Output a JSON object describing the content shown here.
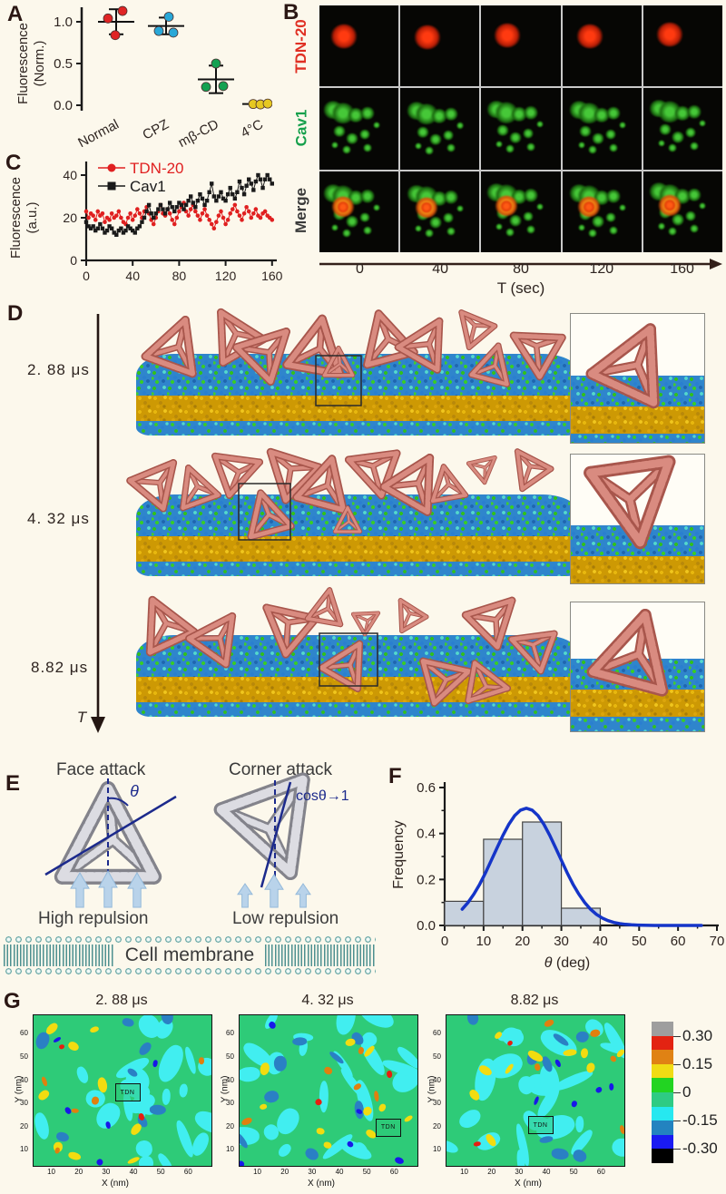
{
  "figure": {
    "background": "#fcf8ec"
  },
  "panelA": {
    "label": "A",
    "ylabel_line1": "Fluorescence",
    "ylabel_line2": "(Norm.)",
    "yticks": [
      "1.0",
      "0.5",
      "0.0"
    ],
    "categories": [
      {
        "name": "Normal",
        "color": "#e02424",
        "points": [
          1.04,
          1.13,
          0.84
        ],
        "mean": 1.0,
        "err": 0.15
      },
      {
        "name": "CPZ",
        "color": "#29a8d8",
        "points": [
          1.06,
          0.89,
          0.87
        ],
        "mean": 0.95,
        "err": 0.1
      },
      {
        "name": "mβ-CD",
        "color": "#13a151",
        "points": [
          0.5,
          0.22,
          0.23
        ],
        "mean": 0.31,
        "err": 0.165
      },
      {
        "name": "4°C",
        "color": "#e6c822",
        "points": [
          0.015,
          0.01,
          0.02
        ],
        "mean": 0.015,
        "err": 0.02
      }
    ]
  },
  "panelB": {
    "label": "B",
    "rows": [
      {
        "label": "TDN-20",
        "color": "#e03024"
      },
      {
        "label": "Cav1",
        "color": "#16a04c"
      },
      {
        "label": "Merge",
        "color": "#3a3a3a"
      }
    ],
    "times": [
      "0",
      "40",
      "80",
      "120",
      "160"
    ],
    "xlabel": "T (sec)"
  },
  "panelC": {
    "label": "C",
    "ylabel_line1": "Fluorescence",
    "ylabel_line2": "(a.u.)",
    "yticks": [
      0,
      20,
      40
    ],
    "xticks": [
      0,
      40,
      80,
      120,
      160
    ],
    "x_start": 0,
    "x_step": 2,
    "series": [
      {
        "name": "TDN-20",
        "color": "#e02020",
        "marker": "circle",
        "y": [
          23,
          20,
          22,
          21,
          19,
          23,
          21,
          22,
          18,
          20,
          19,
          22,
          20,
          21,
          23,
          20,
          18,
          17,
          20,
          22,
          19,
          21,
          24,
          22,
          20,
          23,
          25,
          22,
          19,
          17,
          20,
          23,
          26,
          22,
          21,
          24,
          22,
          19,
          17,
          20,
          23,
          25,
          27,
          23,
          21,
          24,
          26,
          23,
          21,
          19,
          22,
          24,
          21,
          19,
          17,
          15,
          18,
          21,
          23,
          20,
          17,
          19,
          22,
          24,
          26,
          23,
          21,
          19,
          22,
          25,
          23,
          20,
          22,
          24,
          21,
          20,
          22,
          23,
          21,
          20,
          19
        ]
      },
      {
        "name": "Cav1",
        "color": "#1a1a1a",
        "marker": "square",
        "y": [
          18,
          16,
          15,
          16,
          14,
          15,
          17,
          15,
          13,
          14,
          16,
          15,
          13,
          12,
          14,
          15,
          13,
          14,
          16,
          15,
          14,
          13,
          15,
          16,
          18,
          20,
          23,
          26,
          22,
          20,
          22,
          24,
          26,
          24,
          22,
          24,
          27,
          25,
          23,
          25,
          27,
          26,
          24,
          26,
          28,
          30,
          27,
          25,
          28,
          31,
          29,
          26,
          28,
          32,
          36,
          30,
          28,
          30,
          32,
          29,
          28,
          31,
          34,
          31,
          29,
          32,
          37,
          34,
          31,
          35,
          38,
          36,
          33,
          37,
          40,
          38,
          34,
          38,
          40,
          38,
          36
        ]
      }
    ]
  },
  "panelD": {
    "label": "D",
    "times": [
      "2. 88 μs",
      "4. 32 μs",
      "8.82 μs"
    ],
    "t_axis_label": "T"
  },
  "panelE": {
    "label": "E",
    "face_title": "Face attack",
    "corner_title": "Corner attack",
    "theta": "θ",
    "cos_label": "cosθ→1",
    "high_label": "High repulsion",
    "low_label": "Low repulsion",
    "membrane_label": "Cell membrane"
  },
  "panelF": {
    "label": "F",
    "ylabel": "Frequency",
    "xlabel_theta": "θ",
    "xlabel_rest": " (deg)",
    "yticks": [
      "0.0",
      "0.2",
      "0.4",
      "0.6"
    ],
    "xticks": [
      0,
      10,
      20,
      30,
      40,
      50,
      60,
      70
    ],
    "bins": {
      "start": 0,
      "width": 10,
      "values": [
        0.105,
        0.375,
        0.45,
        0.075,
        0,
        0,
        0
      ]
    },
    "curve": {
      "peak_x": 21,
      "peak_y": 0.51,
      "sigma": 8.3
    },
    "bar_color": "#c8d2de",
    "curve_color": "#1535c8"
  },
  "panelG": {
    "label": "G",
    "plots": [
      {
        "title": "2. 88 μs",
        "tdn_x": 37,
        "tdn_y": 35,
        "seed": 11
      },
      {
        "title": "4. 32 μs",
        "tdn_x": 57,
        "tdn_y": 20,
        "seed": 47
      },
      {
        "title": "8.82 μs",
        "tdn_x": 37,
        "tdn_y": 21,
        "seed": 83
      }
    ],
    "tdn_label": "TDN",
    "xlabel": "X (nm)",
    "ylabel": "Y (nm)",
    "ticks": [
      10,
      20,
      30,
      40,
      50,
      60
    ],
    "axis_min": 3,
    "axis_max": 68,
    "colorbar": {
      "labels": [
        "0.30",
        "0.15",
        "0",
        "-0.15",
        "-0.30"
      ],
      "colors": [
        "#9e9e9e",
        "#e32312",
        "#e08214",
        "#f0dc14",
        "#22d422",
        "#2ecb84",
        "#26e8f0",
        "#2383c0",
        "#1a1af2",
        "#000000"
      ]
    }
  },
  "chart_data": [
    {
      "type": "scatter",
      "panel": "A",
      "title": "",
      "categories": [
        "Normal",
        "CPZ",
        "mβ-CD",
        "4°C"
      ],
      "series": [
        {
          "name": "replicate points",
          "values": [
            [
              1.04,
              1.13,
              0.84
            ],
            [
              1.06,
              0.89,
              0.87
            ],
            [
              0.5,
              0.22,
              0.23
            ],
            [
              0.015,
              0.01,
              0.02
            ]
          ]
        },
        {
          "name": "mean",
          "values": [
            1.0,
            0.95,
            0.31,
            0.015
          ]
        }
      ],
      "ylabel": "Fluorescence (Norm.)",
      "ylim": [
        -0.05,
        1.2
      ]
    },
    {
      "type": "line",
      "panel": "C",
      "x_range": [
        0,
        160
      ],
      "xticks": [
        0,
        40,
        80,
        120,
        160
      ],
      "series": [
        {
          "name": "TDN-20",
          "approx": "fluctuates ~15-27 around 20"
        },
        {
          "name": "Cav1",
          "approx": "rises from ~14 to ~40"
        }
      ],
      "ylabel": "Fluorescence (a.u.)",
      "ylim": [
        0,
        45
      ]
    },
    {
      "type": "bar",
      "panel": "F",
      "categories": [
        "0-10",
        "10-20",
        "20-30",
        "30-40",
        "40-50",
        "50-60",
        "60-70"
      ],
      "values": [
        0.105,
        0.375,
        0.45,
        0.075,
        0,
        0,
        0
      ],
      "overlay_curve": {
        "type": "gaussian",
        "peak_x": 21,
        "peak_y": 0.51,
        "sigma": 8.3
      },
      "xlabel": "θ (deg)",
      "ylabel": "Frequency",
      "ylim": [
        0,
        0.6
      ]
    },
    {
      "type": "heatmap",
      "panel": "G",
      "titles": [
        "2. 88 μs",
        "4. 32 μs",
        "8.82 μs"
      ],
      "xlabel": "X (nm)",
      "ylabel": "Y (nm)",
      "axis_range": [
        3,
        68
      ],
      "colorbar_range": [
        -0.375,
        0.375
      ],
      "colorbar_tick_labels": [
        0.3,
        0.15,
        0,
        -0.15,
        -0.3
      ],
      "tdn_positions": [
        [
          37,
          35
        ],
        [
          57,
          20
        ],
        [
          37,
          21
        ]
      ]
    }
  ]
}
